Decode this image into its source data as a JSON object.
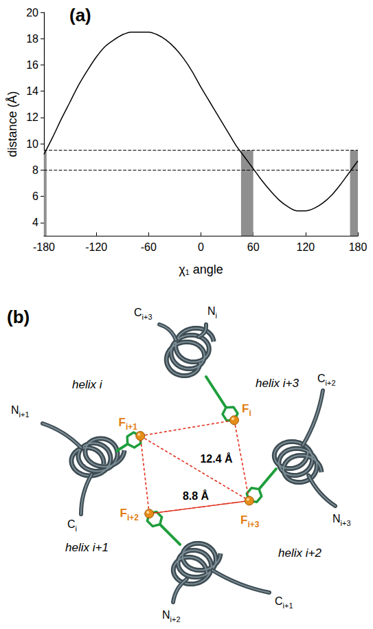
{
  "chart_data": {
    "type": "line",
    "panel_label": "(a)",
    "x_label": "χ₁ angle",
    "y_label": "distance (Å)",
    "x": [
      -180,
      -170,
      -160,
      -150,
      -140,
      -130,
      -120,
      -110,
      -100,
      -90,
      -80,
      -70,
      -60,
      -50,
      -40,
      -30,
      -20,
      -10,
      0,
      10,
      20,
      30,
      40,
      50,
      60,
      70,
      80,
      90,
      100,
      110,
      120,
      130,
      140,
      150,
      160,
      170,
      180
    ],
    "values": [
      9.2,
      10.5,
      11.9,
      13.2,
      14.5,
      15.6,
      16.6,
      17.4,
      17.9,
      18.3,
      18.5,
      18.5,
      18.5,
      18.3,
      17.9,
      17.3,
      16.5,
      15.5,
      14.3,
      13.2,
      12.1,
      11.0,
      9.9,
      9.0,
      8.1,
      7.2,
      6.4,
      5.7,
      5.2,
      4.9,
      4.9,
      5.1,
      5.5,
      6.1,
      6.9,
      7.8,
      8.7
    ],
    "color": "#000000",
    "xlim": [
      -180,
      180
    ],
    "xticks": [
      -180,
      -120,
      -60,
      0,
      60,
      120,
      180
    ],
    "ylim": [
      3,
      20
    ],
    "yticks": [
      4,
      6,
      8,
      10,
      12,
      14,
      16,
      18,
      20
    ],
    "grid": false,
    "reference_lines": [
      8,
      9.5
    ],
    "line_style": "dashed",
    "shaded_ranges": [
      {
        "x": [
          -180,
          -177
        ],
        "y": [
          3,
          9.5
        ]
      },
      {
        "x": [
          46,
          60
        ],
        "y": [
          3,
          9.5
        ]
      },
      {
        "x": [
          171,
          180
        ],
        "y": [
          3,
          9.5
        ]
      }
    ]
  },
  "diagram": {
    "panel_label": "(b)",
    "helices": [
      "helix i",
      "helix i+1",
      "helix i+2",
      "helix i+3"
    ],
    "termini": [
      {
        "text": "C",
        "sub": "i+3"
      },
      {
        "text": "N",
        "sub": "i"
      },
      {
        "text": "N",
        "sub": "i+1"
      },
      {
        "text": "C",
        "sub": "i"
      },
      {
        "text": "C",
        "sub": "i+2"
      },
      {
        "text": "N",
        "sub": "i+3"
      },
      {
        "text": "N",
        "sub": "i+2"
      },
      {
        "text": "C",
        "sub": "i+1"
      }
    ],
    "residues": [
      {
        "text": "F",
        "sub": "i"
      },
      {
        "text": "F",
        "sub": "i+1"
      },
      {
        "text": "F",
        "sub": "i+2"
      },
      {
        "text": "F",
        "sub": "i+3"
      }
    ],
    "distances": [
      {
        "from": "i+1",
        "to": "i+3",
        "label": "12.4 Å"
      },
      {
        "from": "i+2",
        "to": "i+3",
        "label": "8.8 Å"
      }
    ]
  }
}
